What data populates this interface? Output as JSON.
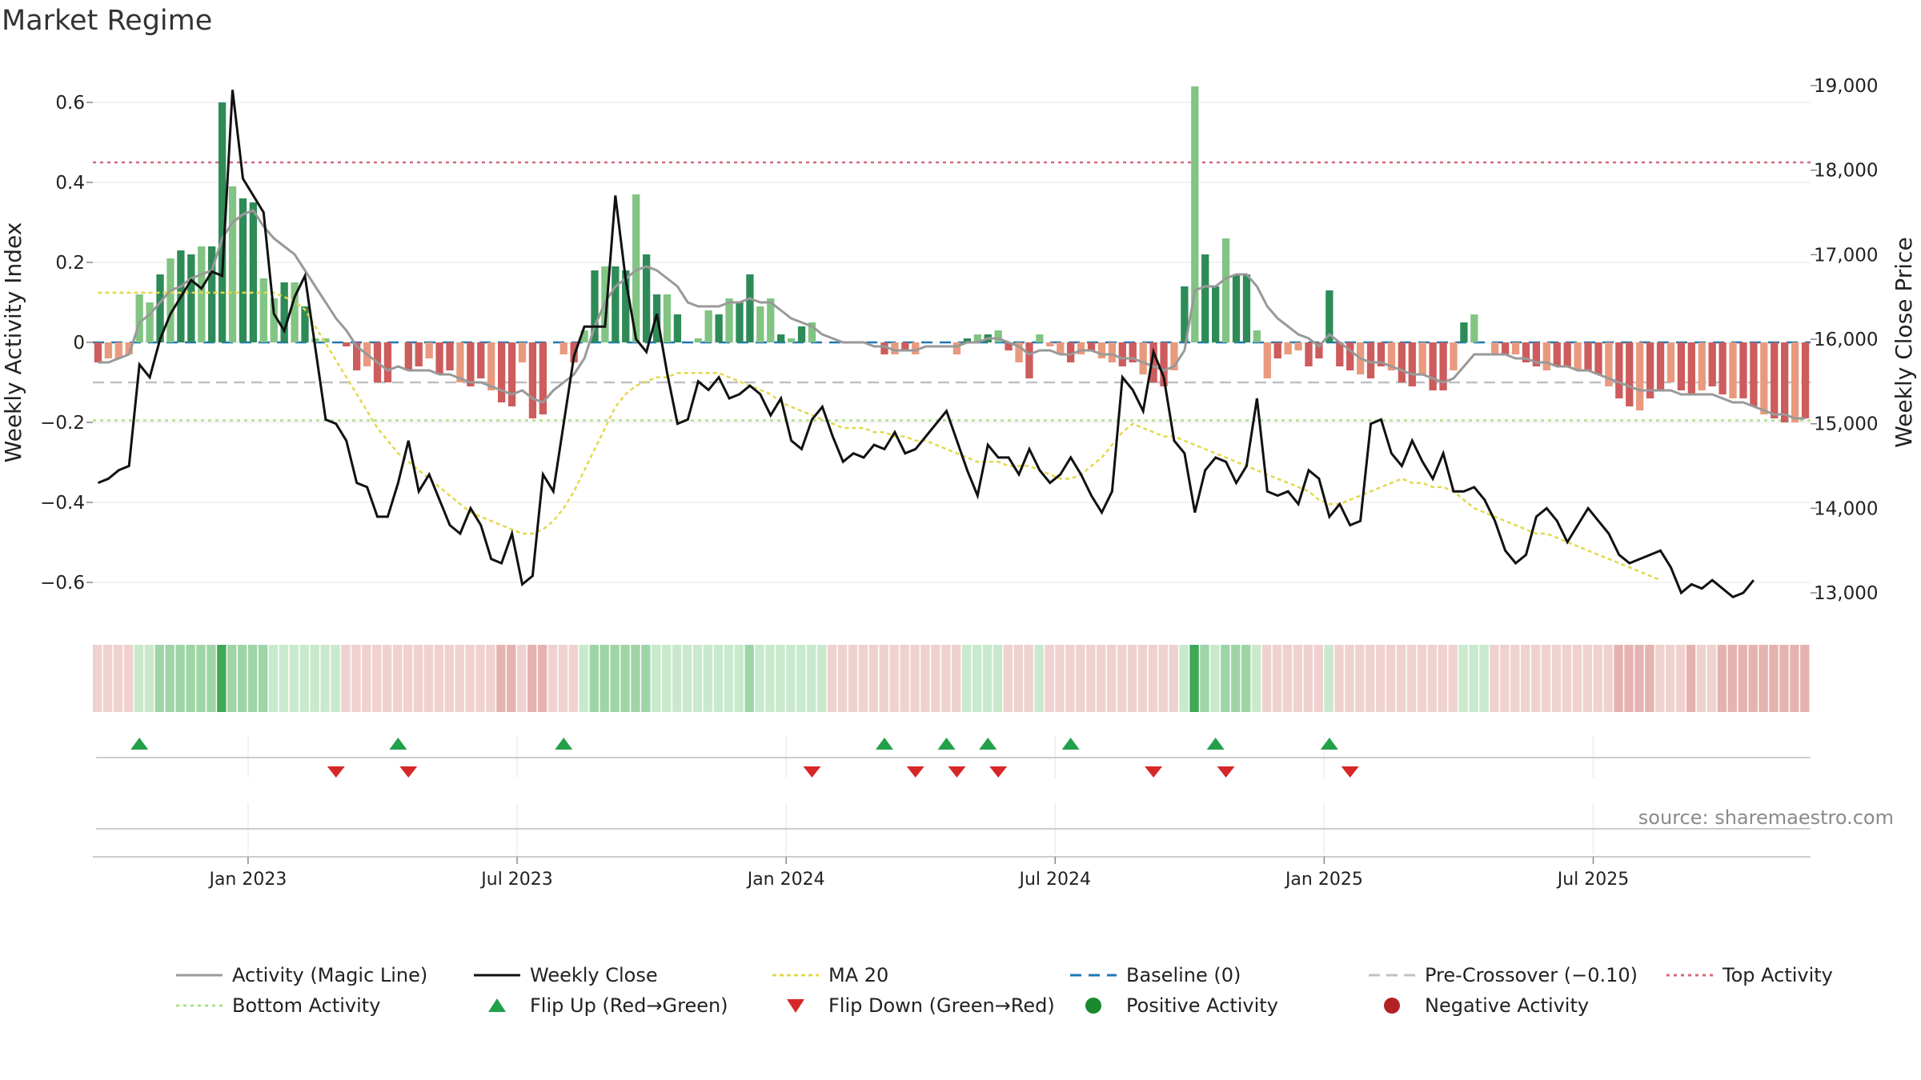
{
  "title": "Market Regime",
  "source": "source: sharemaestro.com",
  "colors": {
    "green_dark": "#2e8b57",
    "green_light": "#82c483",
    "red_dark": "#cd5c5c",
    "red_light": "#e99a7e",
    "magic": "#999999",
    "close": "#111111",
    "ma20": "#e3d84a",
    "baseline": "#1f77b4",
    "precross": "#c0c0c0",
    "top": "#d46a7e",
    "bottom": "#a8e08a",
    "flip_up": "#22a04a",
    "flip_down": "#d62728",
    "positive": "#1a8a2e",
    "negative": "#b22222"
  },
  "chart_data": {
    "type": "bar",
    "title": "Market Regime",
    "ylabel": "Weekly Activity Index",
    "y2label": "Weekly Close Price",
    "ylim": [
      -0.7,
      0.7
    ],
    "y2lim": [
      12700,
      19200
    ],
    "yticks": [
      0.6,
      0.4,
      0.2,
      0,
      -0.2,
      -0.4,
      -0.6
    ],
    "ytick_labels": [
      "0.6",
      "0.4",
      "0.2",
      "0",
      "−0.2",
      "−0.4",
      "−0.6"
    ],
    "y2ticks": [
      19000,
      18000,
      17000,
      16000,
      15000,
      14000,
      13000
    ],
    "y2tick_labels": [
      "19,000",
      "18,000",
      "17,000",
      "16,000",
      "15,000",
      "14,000",
      "13,000"
    ],
    "x_weeks": 158,
    "xticks": [
      {
        "week": 15,
        "label": "Jan 2023"
      },
      {
        "week": 41,
        "label": "Jul 2023"
      },
      {
        "week": 67,
        "label": "Jan 2024"
      },
      {
        "week": 93,
        "label": "Jul 2024"
      },
      {
        "week": 119,
        "label": "Jan 2025"
      },
      {
        "week": 145,
        "label": "Jul 2025"
      }
    ],
    "top_activity": 0.45,
    "bottom_activity": -0.195,
    "pre_crossover": -0.1,
    "baseline": 0,
    "activity": [
      -0.05,
      -0.04,
      -0.04,
      -0.03,
      0.12,
      0.1,
      0.17,
      0.21,
      0.23,
      0.22,
      0.24,
      0.24,
      0.6,
      0.39,
      0.36,
      0.35,
      0.16,
      0.11,
      0.15,
      0.15,
      0.09,
      0.01,
      0.01,
      0.0,
      -0.01,
      -0.07,
      -0.06,
      -0.1,
      -0.1,
      0.0,
      -0.07,
      -0.06,
      -0.04,
      -0.08,
      -0.07,
      -0.1,
      -0.11,
      -0.09,
      -0.12,
      -0.15,
      -0.16,
      -0.05,
      -0.19,
      -0.18,
      0.0,
      -0.03,
      -0.05,
      0.03,
      0.18,
      0.19,
      0.19,
      0.18,
      0.37,
      0.22,
      0.12,
      0.12,
      0.07,
      0.0,
      0.01,
      0.08,
      0.07,
      0.11,
      0.1,
      0.17,
      0.09,
      0.11,
      0.02,
      0.01,
      0.04,
      0.05,
      0.0,
      0.0,
      0.0,
      0.0,
      0.0,
      0.0,
      -0.03,
      -0.03,
      -0.02,
      -0.03,
      0.0,
      0.0,
      0.0,
      -0.03,
      0.01,
      0.02,
      0.02,
      0.03,
      -0.02,
      -0.05,
      -0.09,
      0.02,
      -0.01,
      -0.03,
      -0.05,
      -0.03,
      -0.02,
      -0.04,
      -0.05,
      -0.06,
      -0.05,
      -0.08,
      -0.1,
      -0.11,
      -0.07,
      0.14,
      0.64,
      0.22,
      0.14,
      0.26,
      0.17,
      0.17,
      0.03,
      -0.09,
      -0.04,
      -0.03,
      -0.02,
      -0.06,
      -0.04,
      0.13,
      -0.06,
      -0.07,
      -0.08,
      -0.09,
      -0.06,
      -0.07,
      -0.1,
      -0.11,
      -0.08,
      -0.12,
      -0.12,
      -0.07,
      0.05,
      0.07,
      -0.0,
      -0.03,
      -0.03,
      -0.03,
      -0.05,
      -0.06,
      -0.07,
      -0.06,
      -0.06,
      -0.07,
      -0.07,
      -0.08,
      -0.11,
      -0.14,
      -0.16,
      -0.17,
      -0.14,
      -0.12,
      -0.1,
      -0.12,
      -0.13,
      -0.12,
      -0.11,
      -0.13,
      -0.14,
      -0.14,
      -0.16,
      -0.18,
      -0.19,
      -0.2,
      -0.2,
      -0.19
    ],
    "magic_line": [
      -0.05,
      -0.05,
      -0.04,
      -0.03,
      0.05,
      0.07,
      0.1,
      0.13,
      0.14,
      0.16,
      0.17,
      0.18,
      0.26,
      0.3,
      0.32,
      0.33,
      0.29,
      0.26,
      0.24,
      0.22,
      0.18,
      0.14,
      0.1,
      0.06,
      0.03,
      -0.01,
      -0.03,
      -0.05,
      -0.07,
      -0.06,
      -0.07,
      -0.07,
      -0.07,
      -0.08,
      -0.08,
      -0.09,
      -0.1,
      -0.1,
      -0.11,
      -0.12,
      -0.13,
      -0.12,
      -0.14,
      -0.15,
      -0.12,
      -0.1,
      -0.08,
      -0.04,
      0.04,
      0.1,
      0.14,
      0.16,
      0.18,
      0.19,
      0.18,
      0.16,
      0.14,
      0.1,
      0.09,
      0.09,
      0.09,
      0.1,
      0.1,
      0.11,
      0.1,
      0.1,
      0.08,
      0.06,
      0.05,
      0.04,
      0.02,
      0.01,
      0.0,
      0.0,
      0.0,
      -0.01,
      -0.01,
      -0.02,
      -0.02,
      -0.02,
      -0.01,
      -0.01,
      -0.01,
      -0.01,
      0.0,
      0.0,
      0.01,
      0.01,
      0.0,
      -0.01,
      -0.03,
      -0.02,
      -0.02,
      -0.03,
      -0.03,
      -0.02,
      -0.02,
      -0.03,
      -0.03,
      -0.04,
      -0.04,
      -0.05,
      -0.06,
      -0.07,
      -0.06,
      -0.02,
      0.13,
      0.14,
      0.14,
      0.16,
      0.17,
      0.17,
      0.14,
      0.09,
      0.06,
      0.04,
      0.02,
      0.01,
      -0.01,
      0.02,
      0.0,
      -0.02,
      -0.04,
      -0.05,
      -0.05,
      -0.06,
      -0.07,
      -0.08,
      -0.08,
      -0.09,
      -0.1,
      -0.09,
      -0.06,
      -0.03,
      -0.03,
      -0.03,
      -0.03,
      -0.04,
      -0.04,
      -0.05,
      -0.05,
      -0.06,
      -0.06,
      -0.07,
      -0.07,
      -0.08,
      -0.09,
      -0.1,
      -0.11,
      -0.12,
      -0.12,
      -0.12,
      -0.12,
      -0.13,
      -0.13,
      -0.13,
      -0.13,
      -0.14,
      -0.15,
      -0.15,
      -0.16,
      -0.17,
      -0.18,
      -0.18,
      -0.19,
      -0.19
    ],
    "weekly_close": [
      14300,
      14350,
      14450,
      14500,
      15700,
      15550,
      16000,
      16300,
      16500,
      16700,
      16600,
      16800,
      16750,
      18950,
      17900,
      17700,
      17500,
      16300,
      16100,
      16500,
      16750,
      15900,
      15050,
      15000,
      14800,
      14300,
      14250,
      13900,
      13900,
      14300,
      14800,
      14200,
      14400,
      14100,
      13800,
      13700,
      14000,
      13800,
      13400,
      13350,
      13700,
      13100,
      13200,
      14400,
      14200,
      15000,
      15800,
      16150,
      16150,
      16150,
      17700,
      16700,
      16000,
      15850,
      16300,
      15600,
      15000,
      15050,
      15500,
      15400,
      15550,
      15300,
      15350,
      15450,
      15350,
      15100,
      15300,
      14800,
      14700,
      15050,
      15200,
      14850,
      14550,
      14650,
      14600,
      14750,
      14700,
      14900,
      14650,
      14700,
      14850,
      15000,
      15150,
      14800,
      14450,
      14150,
      14750,
      14600,
      14600,
      14400,
      14700,
      14450,
      14300,
      14400,
      14600,
      14400,
      14150,
      13950,
      14200,
      15550,
      15400,
      15150,
      15850,
      15550,
      14800,
      14650,
      13950,
      14450,
      14600,
      14550,
      14300,
      14500,
      15300,
      14200,
      14150,
      14200,
      14050,
      14450,
      14350,
      13900,
      14050,
      13800,
      13850,
      15000,
      15050,
      14650,
      14500,
      14800,
      14550,
      14350,
      14650,
      14200,
      14200,
      14250,
      14100,
      13850,
      13500,
      13350,
      13450,
      13900,
      14000,
      13850,
      13600,
      13800,
      14000,
      13850,
      13700,
      13450,
      13350,
      13400,
      13450,
      13500,
      13300,
      13000,
      13100,
      13050,
      13150,
      13050,
      12950,
      13000,
      13150
    ],
    "ma20": [
      16550,
      16550,
      16550,
      16550,
      16550,
      16550,
      16550,
      16550,
      16550,
      16550,
      16550,
      16550,
      16550,
      16550,
      16550,
      16550,
      16550,
      16550,
      16500,
      16450,
      16350,
      16150,
      15950,
      15750,
      15550,
      15350,
      15150,
      14950,
      14800,
      14650,
      14550,
      14450,
      14350,
      14250,
      14150,
      14050,
      13950,
      13900,
      13850,
      13800,
      13750,
      13700,
      13700,
      13750,
      13850,
      14000,
      14200,
      14450,
      14700,
      14950,
      15200,
      15350,
      15450,
      15500,
      15550,
      15550,
      15600,
      15600,
      15600,
      15600,
      15600,
      15550,
      15500,
      15450,
      15400,
      15350,
      15250,
      15200,
      15150,
      15100,
      15050,
      15000,
      14950,
      14950,
      14950,
      14900,
      14900,
      14850,
      14850,
      14800,
      14800,
      14750,
      14700,
      14650,
      14600,
      14550,
      14550,
      14550,
      14500,
      14500,
      14500,
      14450,
      14400,
      14350,
      14350,
      14400,
      14500,
      14600,
      14750,
      14900,
      15000,
      14950,
      14900,
      14850,
      14850,
      14800,
      14750,
      14700,
      14650,
      14600,
      14550,
      14500,
      14450,
      14400,
      14350,
      14300,
      14250,
      14200,
      14100,
      14050,
      14050,
      14100,
      14150,
      14200,
      14250,
      14300,
      14350,
      14300,
      14300,
      14250,
      14250,
      14200,
      14100,
      14000,
      13950,
      13900,
      13850,
      13800,
      13750,
      13700,
      13700,
      13650,
      13600,
      13550,
      13500,
      13450,
      13400,
      13350,
      13300,
      13250,
      13200,
      13150
    ],
    "flip_up": [
      4,
      29,
      45,
      76,
      82,
      86,
      94,
      108,
      119
    ],
    "flip_down": [
      23,
      30,
      69,
      79,
      83,
      87,
      102,
      109,
      121
    ],
    "legend": [
      "Activity (Magic Line)",
      "Weekly Close",
      "MA 20",
      "Baseline (0)",
      "Pre-Crossover (−0.10)",
      "Top Activity",
      "Bottom Activity",
      "Flip Up (Red→Green)",
      "Flip Down (Green→Red)",
      "Positive Activity",
      "Negative Activity"
    ]
  }
}
